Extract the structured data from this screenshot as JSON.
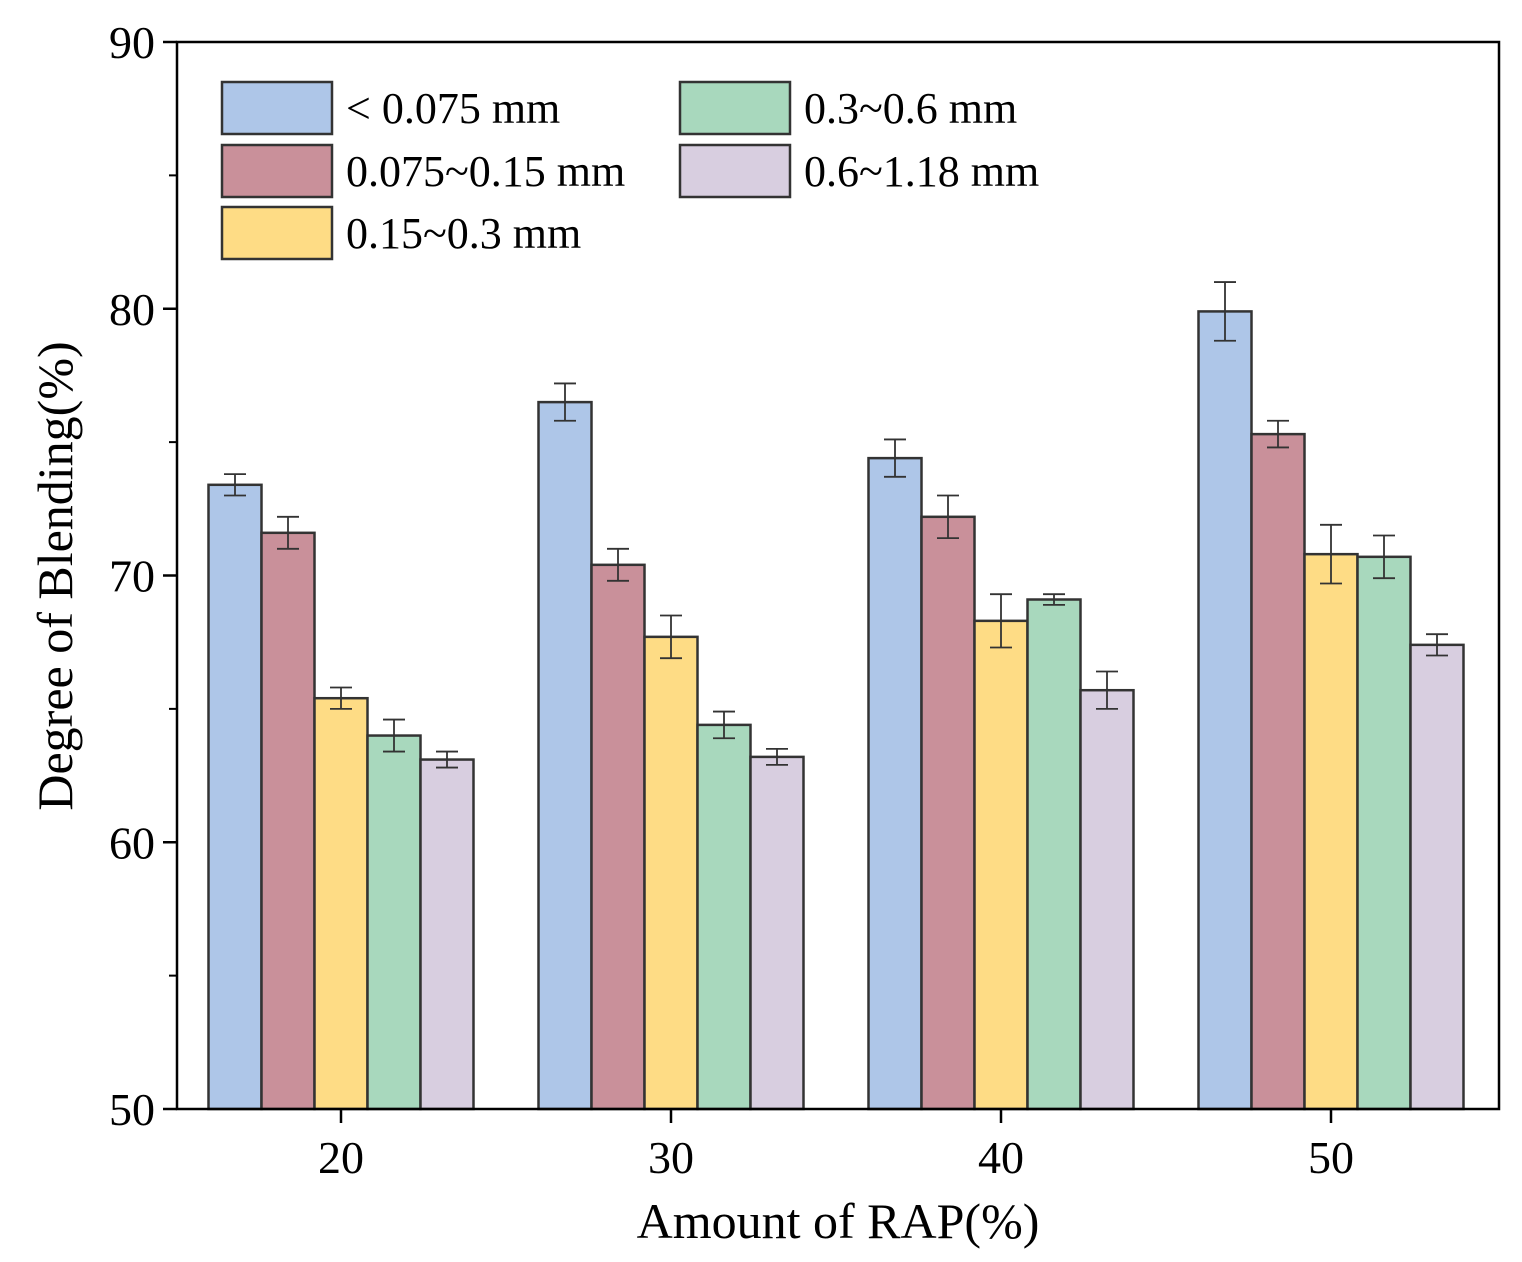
{
  "chart_data": {
    "type": "bar",
    "title": "",
    "xlabel": "Amount of RAP(%)",
    "ylabel": "Degree of Blending(%)",
    "categories": [
      "20",
      "30",
      "40",
      "50"
    ],
    "ylim": [
      50,
      90
    ],
    "yticks": [
      50,
      60,
      70,
      80,
      90
    ],
    "grid": false,
    "legend_position": "top-left",
    "series": [
      {
        "name": "< 0.075 mm",
        "color": "#aec6e8",
        "values": [
          73.4,
          76.5,
          74.4,
          79.9
        ],
        "errors": [
          0.4,
          0.7,
          0.7,
          1.1
        ]
      },
      {
        "name": "0.075~0.15 mm",
        "color": "#c9909a",
        "values": [
          71.6,
          70.4,
          72.2,
          75.3
        ],
        "errors": [
          0.6,
          0.6,
          0.8,
          0.5
        ]
      },
      {
        "name": "0.15~0.3 mm",
        "color": "#fedc85",
        "values": [
          65.4,
          67.7,
          68.3,
          70.8
        ],
        "errors": [
          0.4,
          0.8,
          1.0,
          1.1
        ]
      },
      {
        "name": "0.3~0.6 mm",
        "color": "#a8d8bd",
        "values": [
          64.0,
          64.4,
          69.1,
          70.7
        ],
        "errors": [
          0.6,
          0.5,
          0.2,
          0.8
        ]
      },
      {
        "name": "0.6~1.18 mm",
        "color": "#d8cee0",
        "values": [
          63.1,
          63.2,
          65.7,
          67.4
        ],
        "errors": [
          0.3,
          0.3,
          0.7,
          0.4
        ]
      }
    ]
  }
}
